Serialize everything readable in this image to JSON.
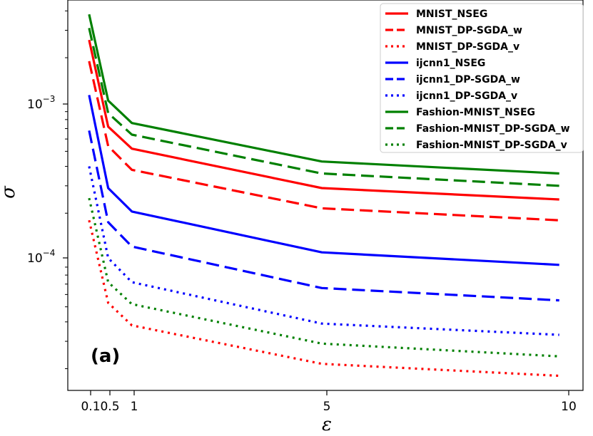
{
  "chart_data": {
    "type": "line",
    "panel_label": "(a)",
    "xlabel": "ε",
    "ylabel": "σ",
    "xlim": [
      -0.35,
      10.5
    ],
    "ylim": [
      1.45e-05,
      0.0047
    ],
    "yscale": "log",
    "x_ticks": [
      0.1,
      0.5,
      1,
      5,
      10
    ],
    "x_tick_labels": [
      "0.1",
      "0.5",
      "1",
      "5",
      "10"
    ],
    "y_ticks": [
      0.001,
      0.0001
    ],
    "y_tick_labels": [
      "10^-3",
      "10^-4"
    ],
    "legend_position": "upper right",
    "grid": false,
    "x": [
      0.1,
      0.5,
      1,
      5,
      10
    ],
    "series": [
      {
        "name": "MNIST_NSEG",
        "color": "#ff0000",
        "style": "solid",
        "values": [
          0.0026,
          0.00072,
          0.00052,
          0.00029,
          0.000245
        ]
      },
      {
        "name": "MNIST_DP-SGDA_w",
        "color": "#ff0000",
        "style": "dashed",
        "values": [
          0.0019,
          0.00054,
          0.00038,
          0.000215,
          0.00018
        ]
      },
      {
        "name": "MNIST_DP-SGDA_v",
        "color": "#ff0000",
        "style": "dotted",
        "values": [
          0.00018,
          5.3e-05,
          3.8e-05,
          2.15e-05,
          1.8e-05
        ]
      },
      {
        "name": "ijcnn1_NSEG",
        "color": "#0000ff",
        "style": "solid",
        "values": [
          0.00115,
          0.00029,
          0.000205,
          0.000112,
          9.3e-05
        ]
      },
      {
        "name": "ijcnn1_DP-SGDA_w",
        "color": "#0000ff",
        "style": "dashed",
        "values": [
          0.00068,
          0.000175,
          0.000122,
          6.6e-05,
          5.5e-05
        ]
      },
      {
        "name": "ijcnn1_DP-SGDA_v",
        "color": "#0000ff",
        "style": "dotted",
        "values": [
          0.0004,
          0.000103,
          7.2e-05,
          3.9e-05,
          3.3e-05
        ]
      },
      {
        "name": "Fashion-MNIST_NSEG",
        "color": "#008000",
        "style": "solid",
        "values": [
          0.0038,
          0.00106,
          0.00076,
          0.00043,
          0.00036
        ]
      },
      {
        "name": "Fashion-MNIST_DP-SGDA_w",
        "color": "#008000",
        "style": "dashed",
        "values": [
          0.0031,
          0.00088,
          0.00064,
          0.00036,
          0.0003
        ]
      },
      {
        "name": "Fashion-MNIST_DP-SGDA_v",
        "color": "#008000",
        "style": "dotted",
        "values": [
          0.00025,
          7.2e-05,
          5.2e-05,
          2.9e-05,
          2.4e-05
        ]
      }
    ]
  }
}
